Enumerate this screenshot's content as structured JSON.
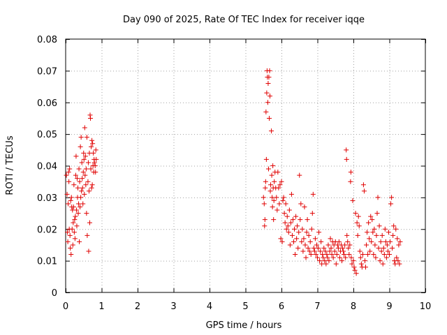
{
  "chart_data": {
    "type": "scatter",
    "title": "Day 090 of 2025, Rate Of TEC Index for receiver iqqe",
    "xlabel": "GPS time / hours",
    "ylabel": "ROTI / TECUs",
    "xlim": [
      0,
      10
    ],
    "ylim": [
      0,
      0.08
    ],
    "xticks": [
      "0",
      "1",
      "2",
      "3",
      "4",
      "5",
      "6",
      "7",
      "8",
      "9",
      "10"
    ],
    "yticks": [
      "0",
      "0.01",
      "0.02",
      "0.03",
      "0.04",
      "0.05",
      "0.06",
      "0.07",
      "0.08"
    ],
    "grid": true,
    "marker": "+",
    "color": "#e00000",
    "series": [
      {
        "name": "ROTI",
        "points": [
          [
            0.02,
            0.037
          ],
          [
            0.04,
            0.031
          ],
          [
            0.05,
            0.019
          ],
          [
            0.06,
            0.016
          ],
          [
            0.07,
            0.028
          ],
          [
            0.08,
            0.038
          ],
          [
            0.09,
            0.035
          ],
          [
            0.1,
            0.02
          ],
          [
            0.11,
            0.039
          ],
          [
            0.12,
            0.018
          ],
          [
            0.13,
            0.014
          ],
          [
            0.14,
            0.029
          ],
          [
            0.15,
            0.012
          ],
          [
            0.16,
            0.03
          ],
          [
            0.17,
            0.027
          ],
          [
            0.18,
            0.02
          ],
          [
            0.19,
            0.026
          ],
          [
            0.2,
            0.015
          ],
          [
            0.21,
            0.022
          ],
          [
            0.22,
            0.027
          ],
          [
            0.23,
            0.034
          ],
          [
            0.24,
            0.019
          ],
          [
            0.25,
            0.023
          ],
          [
            0.26,
            0.017
          ],
          [
            0.27,
            0.024
          ],
          [
            0.28,
            0.037
          ],
          [
            0.29,
            0.043
          ],
          [
            0.3,
            0.026
          ],
          [
            0.31,
            0.021
          ],
          [
            0.32,
            0.036
          ],
          [
            0.33,
            0.03
          ],
          [
            0.34,
            0.033
          ],
          [
            0.35,
            0.025
          ],
          [
            0.36,
            0.028
          ],
          [
            0.37,
            0.039
          ],
          [
            0.38,
            0.016
          ],
          [
            0.39,
            0.035
          ],
          [
            0.4,
            0.027
          ],
          [
            0.41,
            0.046
          ],
          [
            0.42,
            0.03
          ],
          [
            0.43,
            0.049
          ],
          [
            0.44,
            0.032
          ],
          [
            0.45,
            0.041
          ],
          [
            0.46,
            0.036
          ],
          [
            0.47,
            0.033
          ],
          [
            0.48,
            0.028
          ],
          [
            0.49,
            0.038
          ],
          [
            0.5,
            0.044
          ],
          [
            0.51,
            0.042
          ],
          [
            0.52,
            0.031
          ],
          [
            0.53,
            0.052
          ],
          [
            0.54,
            0.037
          ],
          [
            0.55,
            0.043
          ],
          [
            0.56,
            0.034
          ],
          [
            0.57,
            0.039
          ],
          [
            0.58,
            0.025
          ],
          [
            0.59,
            0.049
          ],
          [
            0.6,
            0.018
          ],
          [
            0.62,
            0.035
          ],
          [
            0.63,
            0.041
          ],
          [
            0.64,
            0.013
          ],
          [
            0.65,
            0.032
          ],
          [
            0.66,
            0.044
          ],
          [
            0.67,
            0.022
          ],
          [
            0.68,
            0.056
          ],
          [
            0.69,
            0.055
          ],
          [
            0.7,
            0.039
          ],
          [
            0.71,
            0.046
          ],
          [
            0.72,
            0.033
          ],
          [
            0.73,
            0.048
          ],
          [
            0.74,
            0.034
          ],
          [
            0.75,
            0.047
          ],
          [
            0.76,
            0.04
          ],
          [
            0.77,
            0.044
          ],
          [
            0.78,
            0.038
          ],
          [
            0.79,
            0.042
          ],
          [
            0.8,
            0.041
          ],
          [
            0.82,
            0.04
          ],
          [
            0.83,
            0.038
          ],
          [
            0.84,
            0.045
          ],
          [
            0.85,
            0.042
          ],
          [
            5.5,
            0.03
          ],
          [
            5.52,
            0.028
          ],
          [
            5.53,
            0.021
          ],
          [
            5.54,
            0.023
          ],
          [
            5.55,
            0.033
          ],
          [
            5.56,
            0.035
          ],
          [
            5.57,
            0.057
          ],
          [
            5.58,
            0.042
          ],
          [
            5.59,
            0.063
          ],
          [
            5.6,
            0.07
          ],
          [
            5.61,
            0.068
          ],
          [
            5.62,
            0.06
          ],
          [
            5.63,
            0.066
          ],
          [
            5.64,
            0.039
          ],
          [
            5.65,
            0.068
          ],
          [
            5.66,
            0.055
          ],
          [
            5.67,
            0.07
          ],
          [
            5.68,
            0.062
          ],
          [
            5.69,
            0.032
          ],
          [
            5.7,
            0.034
          ],
          [
            5.72,
            0.051
          ],
          [
            5.73,
            0.037
          ],
          [
            5.74,
            0.03
          ],
          [
            5.75,
            0.027
          ],
          [
            5.76,
            0.04
          ],
          [
            5.77,
            0.033
          ],
          [
            5.78,
            0.023
          ],
          [
            5.79,
            0.029
          ],
          [
            5.8,
            0.035
          ],
          [
            5.82,
            0.038
          ],
          [
            5.84,
            0.033
          ],
          [
            5.86,
            0.03
          ],
          [
            5.88,
            0.026
          ],
          [
            5.9,
            0.038
          ],
          [
            5.92,
            0.033
          ],
          [
            5.94,
            0.028
          ],
          [
            5.96,
            0.034
          ],
          [
            5.98,
            0.017
          ],
          [
            6.0,
            0.035
          ],
          [
            6.02,
            0.016
          ],
          [
            6.04,
            0.029
          ],
          [
            6.06,
            0.03
          ],
          [
            6.08,
            0.025
          ],
          [
            6.1,
            0.022
          ],
          [
            6.12,
            0.028
          ],
          [
            6.14,
            0.02
          ],
          [
            6.16,
            0.024
          ],
          [
            6.18,
            0.021
          ],
          [
            6.2,
            0.019
          ],
          [
            6.22,
            0.026
          ],
          [
            6.24,
            0.015
          ],
          [
            6.26,
            0.022
          ],
          [
            6.28,
            0.031
          ],
          [
            6.3,
            0.018
          ],
          [
            6.32,
            0.023
          ],
          [
            6.34,
            0.016
          ],
          [
            6.36,
            0.02
          ],
          [
            6.38,
            0.012
          ],
          [
            6.4,
            0.024
          ],
          [
            6.42,
            0.017
          ],
          [
            6.44,
            0.021
          ],
          [
            6.46,
            0.014
          ],
          [
            6.48,
            0.019
          ],
          [
            6.5,
            0.037
          ],
          [
            6.52,
            0.023
          ],
          [
            6.54,
            0.028
          ],
          [
            6.56,
            0.016
          ],
          [
            6.58,
            0.02
          ],
          [
            6.6,
            0.013
          ],
          [
            6.62,
            0.017
          ],
          [
            6.64,
            0.027
          ],
          [
            6.66,
            0.015
          ],
          [
            6.68,
            0.011
          ],
          [
            6.7,
            0.019
          ],
          [
            6.72,
            0.023
          ],
          [
            6.74,
            0.014
          ],
          [
            6.76,
            0.018
          ],
          [
            6.78,
            0.013
          ],
          [
            6.8,
            0.016
          ],
          [
            6.82,
            0.012
          ],
          [
            6.84,
            0.02
          ],
          [
            6.86,
            0.025
          ],
          [
            6.88,
            0.031
          ],
          [
            6.9,
            0.014
          ],
          [
            6.92,
            0.013
          ],
          [
            6.94,
            0.017
          ],
          [
            6.96,
            0.012
          ],
          [
            6.98,
            0.015
          ],
          [
            7.0,
            0.011
          ],
          [
            7.02,
            0.014
          ],
          [
            7.04,
            0.019
          ],
          [
            7.06,
            0.01
          ],
          [
            7.08,
            0.013
          ],
          [
            7.1,
            0.016
          ],
          [
            7.12,
            0.009
          ],
          [
            7.14,
            0.012
          ],
          [
            7.16,
            0.011
          ],
          [
            7.18,
            0.014
          ],
          [
            7.2,
            0.01
          ],
          [
            7.22,
            0.013
          ],
          [
            7.24,
            0.009
          ],
          [
            7.26,
            0.012
          ],
          [
            7.28,
            0.011
          ],
          [
            7.3,
            0.015
          ],
          [
            7.32,
            0.01
          ],
          [
            7.34,
            0.013
          ],
          [
            7.36,
            0.017
          ],
          [
            7.38,
            0.014
          ],
          [
            7.4,
            0.012
          ],
          [
            7.42,
            0.016
          ],
          [
            7.44,
            0.011
          ],
          [
            7.46,
            0.015
          ],
          [
            7.48,
            0.013
          ],
          [
            7.5,
            0.016
          ],
          [
            7.52,
            0.009
          ],
          [
            7.54,
            0.012
          ],
          [
            7.56,
            0.015
          ],
          [
            7.58,
            0.014
          ],
          [
            7.6,
            0.016
          ],
          [
            7.62,
            0.011
          ],
          [
            7.64,
            0.013
          ],
          [
            7.66,
            0.015
          ],
          [
            7.68,
            0.01
          ],
          [
            7.7,
            0.014
          ],
          [
            7.72,
            0.013
          ],
          [
            7.74,
            0.012
          ],
          [
            7.76,
            0.015
          ],
          [
            7.78,
            0.011
          ],
          [
            7.8,
            0.045
          ],
          [
            7.81,
            0.042
          ],
          [
            7.82,
            0.018
          ],
          [
            7.84,
            0.016
          ],
          [
            7.86,
            0.014
          ],
          [
            7.88,
            0.012
          ],
          [
            7.9,
            0.015
          ],
          [
            7.92,
            0.035
          ],
          [
            7.93,
            0.038
          ],
          [
            7.94,
            0.011
          ],
          [
            7.96,
            0.009
          ],
          [
            7.98,
            0.029
          ],
          [
            8.0,
            0.01
          ],
          [
            8.02,
            0.008
          ],
          [
            8.04,
            0.007
          ],
          [
            8.06,
            0.025
          ],
          [
            8.08,
            0.006
          ],
          [
            8.1,
            0.022
          ],
          [
            8.12,
            0.018
          ],
          [
            8.14,
            0.024
          ],
          [
            8.16,
            0.021
          ],
          [
            8.18,
            0.013
          ],
          [
            8.2,
            0.011
          ],
          [
            8.22,
            0.009
          ],
          [
            8.24,
            0.008
          ],
          [
            8.26,
            0.012
          ],
          [
            8.28,
            0.034
          ],
          [
            8.3,
            0.032
          ],
          [
            8.32,
            0.01
          ],
          [
            8.34,
            0.008
          ],
          [
            8.36,
            0.015
          ],
          [
            8.38,
            0.019
          ],
          [
            8.4,
            0.012
          ],
          [
            8.42,
            0.022
          ],
          [
            8.44,
            0.017
          ],
          [
            8.46,
            0.013
          ],
          [
            8.48,
            0.024
          ],
          [
            8.5,
            0.016
          ],
          [
            8.52,
            0.023
          ],
          [
            8.54,
            0.019
          ],
          [
            8.56,
            0.012
          ],
          [
            8.58,
            0.02
          ],
          [
            8.6,
            0.015
          ],
          [
            8.62,
            0.011
          ],
          [
            8.64,
            0.018
          ],
          [
            8.66,
            0.025
          ],
          [
            8.68,
            0.03
          ],
          [
            8.7,
            0.014
          ],
          [
            8.72,
            0.021
          ],
          [
            8.74,
            0.01
          ],
          [
            8.76,
            0.016
          ],
          [
            8.78,
            0.013
          ],
          [
            8.8,
            0.018
          ],
          [
            8.82,
            0.009
          ],
          [
            8.84,
            0.014
          ],
          [
            8.86,
            0.012
          ],
          [
            8.88,
            0.02
          ],
          [
            8.9,
            0.016
          ],
          [
            8.92,
            0.011
          ],
          [
            8.94,
            0.015
          ],
          [
            8.96,
            0.013
          ],
          [
            8.98,
            0.019
          ],
          [
            9.0,
            0.012
          ],
          [
            9.02,
            0.016
          ],
          [
            9.04,
            0.028
          ],
          [
            9.06,
            0.03
          ],
          [
            9.08,
            0.014
          ],
          [
            9.1,
            0.018
          ],
          [
            9.12,
            0.021
          ],
          [
            9.14,
            0.01
          ],
          [
            9.16,
            0.009
          ],
          [
            9.18,
            0.02
          ],
          [
            9.2,
            0.011
          ],
          [
            9.22,
            0.017
          ],
          [
            9.24,
            0.01
          ],
          [
            9.26,
            0.015
          ],
          [
            9.28,
            0.009
          ],
          [
            9.3,
            0.016
          ]
        ]
      }
    ]
  }
}
